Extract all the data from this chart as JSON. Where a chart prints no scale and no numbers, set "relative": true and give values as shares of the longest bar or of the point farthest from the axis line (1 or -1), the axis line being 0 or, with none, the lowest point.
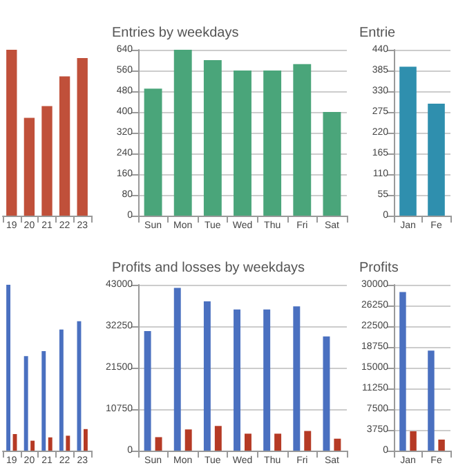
{
  "chart_data": [
    {
      "type": "bar",
      "relative": true,
      "categories": [
        "19",
        "20",
        "21",
        "22",
        "23"
      ],
      "color": "#c0503a",
      "values": [
        1,
        0.59,
        0.66,
        0.84,
        0.95
      ]
    },
    {
      "type": "bar",
      "title": "Entries by weekdays",
      "categories": [
        "Sun",
        "Mon",
        "Tue",
        "Wed",
        "Thu",
        "Fri",
        "Sat"
      ],
      "color": "#4aa57a",
      "values": [
        490,
        640,
        600,
        560,
        560,
        585,
        400
      ],
      "ylim": [
        0,
        640
      ],
      "yticks": [
        0,
        80,
        160,
        240,
        320,
        400,
        480,
        560,
        640
      ],
      "grid": "y"
    },
    {
      "type": "bar",
      "title": "Entrie",
      "categories": [
        "Jan",
        "Fe"
      ],
      "color": "#2f8fae",
      "values": [
        395,
        297
      ],
      "ylim": [
        0,
        440
      ],
      "yticks": [
        0,
        55,
        110,
        165,
        220,
        275,
        330,
        385,
        440
      ],
      "grid": "y"
    },
    {
      "type": "bar",
      "relative": true,
      "categories": [
        "19",
        "20",
        "21",
        "22",
        "23"
      ],
      "series": [
        {
          "color": "#4a70c0",
          "values": [
            1,
            0.57,
            0.6,
            0.73,
            0.78
          ]
        },
        {
          "color": "#b53a25",
          "values": [
            0.1,
            0.06,
            0.08,
            0.09,
            0.13
          ]
        }
      ]
    },
    {
      "type": "bar",
      "title": "Profits and losses by weekdays",
      "categories": [
        "Sun",
        "Mon",
        "Tue",
        "Wed",
        "Thu",
        "Fri",
        "Sat"
      ],
      "series": [
        {
          "color": "#4a70c0",
          "values": [
            31000,
            42200,
            38700,
            36600,
            36600,
            37400,
            29600
          ]
        },
        {
          "color": "#b53a25",
          "values": [
            3500,
            5500,
            6400,
            4400,
            4400,
            5100,
            3100
          ]
        }
      ],
      "ylim": [
        0,
        43000
      ],
      "yticks": [
        0,
        10750,
        21500,
        32250,
        43000
      ],
      "grid": "y"
    },
    {
      "type": "bar",
      "title": "Profits",
      "categories": [
        "Jan",
        "Fe"
      ],
      "series": [
        {
          "color": "#4a70c0",
          "values": [
            28700,
            18100
          ]
        },
        {
          "color": "#b53a25",
          "values": [
            3500,
            2000
          ]
        }
      ],
      "ylim": [
        0,
        30000
      ],
      "yticks": [
        0,
        3750,
        7500,
        11250,
        15000,
        18750,
        22500,
        26250,
        30000
      ],
      "grid": "y"
    }
  ]
}
